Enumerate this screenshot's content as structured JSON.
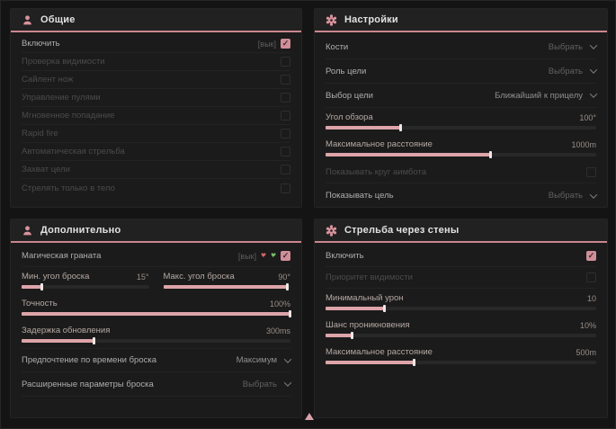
{
  "ui": {
    "accent": "#d08e98",
    "header_line": "#c9868f"
  },
  "panels": {
    "general": {
      "title": "Общие",
      "rows": [
        {
          "label": "Включить",
          "suffix": "[вык]",
          "checked": true,
          "muted": false
        },
        {
          "label": "Проверка видимости",
          "checked": false,
          "muted": true
        },
        {
          "label": "Сайлент нож",
          "checked": false,
          "muted": true
        },
        {
          "label": "Управление пулями",
          "checked": false,
          "muted": true
        },
        {
          "label": "Мгновенное попадание",
          "checked": false,
          "muted": true
        },
        {
          "label": "Rapid fire",
          "checked": false,
          "muted": true
        },
        {
          "label": "Автоматическая стрельба",
          "checked": false,
          "muted": true
        },
        {
          "label": "Захват цели",
          "checked": false,
          "muted": true
        },
        {
          "label": "Стрелять только в тело",
          "checked": false,
          "muted": true
        }
      ]
    },
    "settings": {
      "title": "Настройки",
      "rows": {
        "bones": {
          "label": "Кости",
          "value": "Выбрать"
        },
        "target_role": {
          "label": "Роль цели",
          "value": "Выбрать"
        },
        "target_select": {
          "label": "Выбор цели",
          "value": "Ближайший к прицелу"
        },
        "fov": {
          "label": "Угол обзора",
          "value": "100°",
          "fill": 28
        },
        "max_distance": {
          "label": "Максимальное расстояние",
          "value": "1000m",
          "fill": 61
        },
        "show_circle": {
          "label": "Показывать круг аимбота",
          "checked": false,
          "muted": true
        },
        "show_target": {
          "label": "Показывать цель",
          "value": "Выбрать"
        }
      }
    },
    "additional": {
      "title": "Дополнительно",
      "rows": {
        "magic_grenade": {
          "label": "Магическая граната",
          "suffix": "[вык]",
          "checked": true,
          "muted": false
        },
        "min_angle": {
          "label": "Мин. угол броска",
          "value": "15°",
          "fill": 16
        },
        "max_angle": {
          "label": "Макс. угол броска",
          "value": "90°",
          "fill": 98
        },
        "accuracy": {
          "label": "Точность",
          "value": "100%",
          "fill": 100
        },
        "update_delay": {
          "label": "Задержка обновления",
          "value": "300ms",
          "fill": 27
        },
        "throw_time": {
          "label": "Предпочтение по времени броска",
          "value": "Максимум"
        },
        "advanced": {
          "label": "Расширенные параметры броска",
          "value": "Выбрать"
        }
      }
    },
    "walls": {
      "title": "Стрельба через стены",
      "rows": {
        "enable": {
          "label": "Включить",
          "checked": true,
          "muted": false
        },
        "vis_priority": {
          "label": "Приоритет видимости",
          "checked": false,
          "muted": true
        },
        "min_damage": {
          "label": "Минимальный урон",
          "value": "10",
          "fill": 22
        },
        "penetration": {
          "label": "Шанс проникновения",
          "value": "10%",
          "fill": 10
        },
        "max_distance": {
          "label": "Максимальное расстояние",
          "value": "500m",
          "fill": 33
        }
      }
    }
  }
}
